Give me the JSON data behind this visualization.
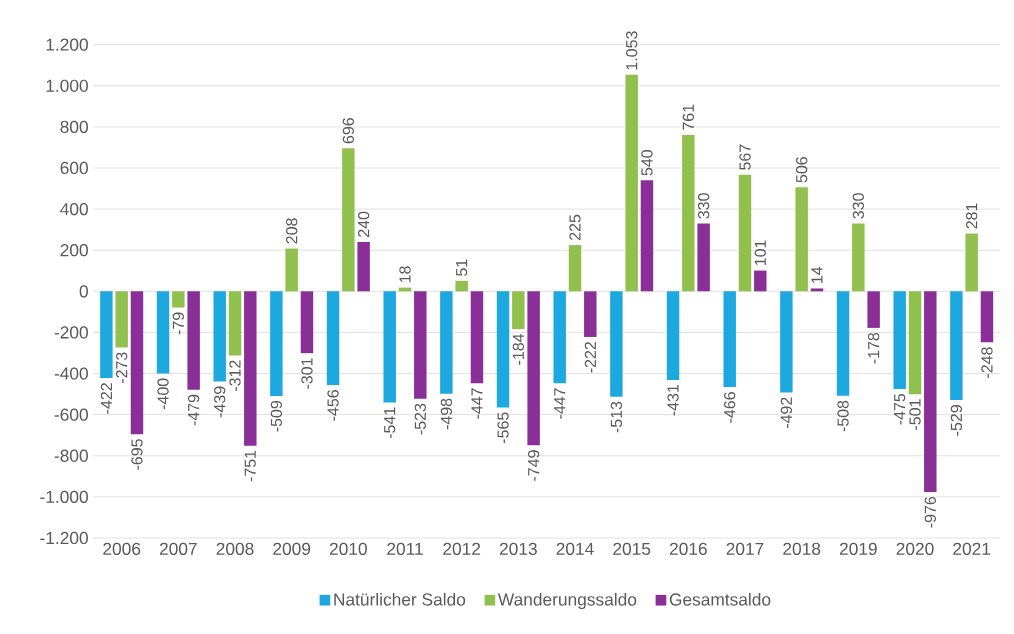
{
  "chart_data": {
    "type": "bar",
    "categories": [
      "2006",
      "2007",
      "2008",
      "2009",
      "2010",
      "2011",
      "2012",
      "2013",
      "2014",
      "2015",
      "2016",
      "2017",
      "2018",
      "2019",
      "2020",
      "2021"
    ],
    "series": [
      {
        "name": "Natürlicher Saldo",
        "color": "#1ea8e0",
        "values": [
          -422,
          -400,
          -439,
          -509,
          -456,
          -541,
          -498,
          -565,
          -447,
          -513,
          -431,
          -466,
          -492,
          -508,
          -475,
          -529
        ],
        "value_labels": [
          "-422",
          "-400",
          "-439",
          "-509",
          "-456",
          "-541",
          "-498",
          "-565",
          "-447",
          "-513",
          "-431",
          "-466",
          "-492",
          "-508",
          "-475",
          "-529"
        ]
      },
      {
        "name": "Wanderungssaldo",
        "color": "#92c04e",
        "values": [
          -273,
          -79,
          -312,
          208,
          696,
          18,
          51,
          -184,
          225,
          1053,
          761,
          567,
          506,
          330,
          -501,
          281
        ],
        "value_labels": [
          "-273",
          "-79",
          "-312",
          "208",
          "696",
          "18",
          "51",
          "-184",
          "225",
          "1.053",
          "761",
          "567",
          "506",
          "330",
          "-501",
          "281"
        ]
      },
      {
        "name": "Gesamtsaldo",
        "color": "#8b2f98",
        "values": [
          -695,
          -479,
          -751,
          -301,
          240,
          -523,
          -447,
          -749,
          -222,
          540,
          330,
          101,
          14,
          -178,
          -976,
          -248
        ],
        "value_labels": [
          "-695",
          "-479",
          "-751",
          "-301",
          "240",
          "-523",
          "-447",
          "-749",
          "-222",
          "540",
          "330",
          "101",
          "14",
          "-178",
          "-976",
          "-248"
        ]
      }
    ],
    "ylim": [
      -1200,
      1200
    ],
    "yticks": [
      {
        "value": -1200,
        "label": "-1.200"
      },
      {
        "value": -1000,
        "label": "-1.000"
      },
      -800,
      -600,
      -400,
      -200,
      0,
      200,
      400,
      600,
      800,
      {
        "value": 1000,
        "label": "1.000"
      },
      {
        "value": 1200,
        "label": "1.200"
      }
    ],
    "grid": "y",
    "legend": "bottom"
  }
}
